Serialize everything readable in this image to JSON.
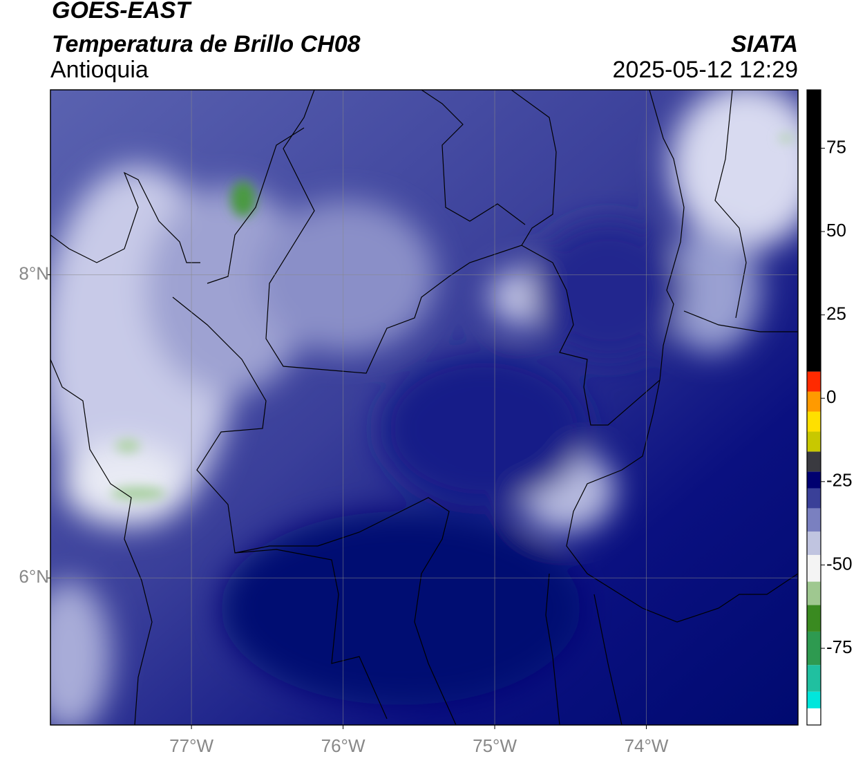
{
  "header": {
    "title": "GOES-EAST",
    "subtitle": "Temperatura de Brillo CH08",
    "region": "Antioquia",
    "source": "SIATA",
    "timestamp": "2025-05-12 12:29"
  },
  "map": {
    "xlim": [
      -77.93,
      -73.0
    ],
    "ylim": [
      5.03,
      9.22
    ],
    "xticks": [
      {
        "value": -77,
        "label": "77°W"
      },
      {
        "value": -76,
        "label": "76°W"
      },
      {
        "value": -75,
        "label": "75°W"
      },
      {
        "value": -74,
        "label": "74°W"
      }
    ],
    "yticks": [
      {
        "value": 8,
        "label": "8°N"
      },
      {
        "value": 6,
        "label": "6°N"
      }
    ],
    "grid": true
  },
  "colorbar": {
    "lim": [
      -98,
      92.5
    ],
    "ticks": [
      75,
      50,
      25,
      0,
      -25,
      -50,
      -75
    ],
    "segments": [
      {
        "from": -98,
        "to": -93,
        "color": "#ffffff"
      },
      {
        "from": -93,
        "to": -88,
        "color": "#00e6dc"
      },
      {
        "from": -88,
        "to": -80,
        "color": "#20c0a0"
      },
      {
        "from": -80,
        "to": -70,
        "color": "#2e9a50"
      },
      {
        "from": -70,
        "to": -62,
        "color": "#3a8a20"
      },
      {
        "from": -62,
        "to": -55,
        "color": "#9fc890"
      },
      {
        "from": -55,
        "to": -47,
        "color": "#f4f4f4"
      },
      {
        "from": -47,
        "to": -40,
        "color": "#c0c4e0"
      },
      {
        "from": -40,
        "to": -33,
        "color": "#7a80c0"
      },
      {
        "from": -33,
        "to": -27,
        "color": "#3a4098"
      },
      {
        "from": -27,
        "to": -22,
        "color": "#000070"
      },
      {
        "from": -22,
        "to": -16,
        "color": "#3a3a40"
      },
      {
        "from": -16,
        "to": -10,
        "color": "#c8c800"
      },
      {
        "from": -10,
        "to": -4,
        "color": "#ffe000"
      },
      {
        "from": -4,
        "to": 2,
        "color": "#ff9a00"
      },
      {
        "from": 2,
        "to": 8,
        "color": "#ff2a00"
      },
      {
        "from": 8,
        "to": 92.5,
        "color": "#000000"
      }
    ]
  }
}
